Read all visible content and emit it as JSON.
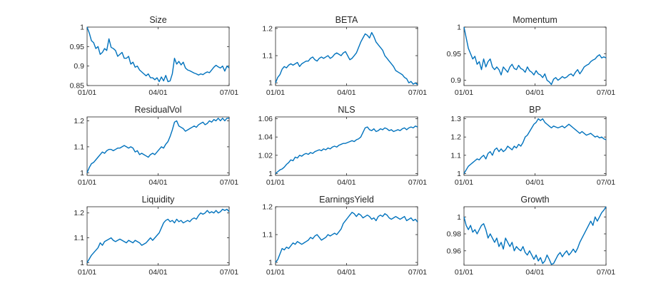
{
  "chart_data": [
    {
      "type": "line",
      "title": "Size",
      "x_ticks": [
        "01/01",
        "04/01",
        "07/01"
      ],
      "y_ticks": [
        0.85,
        0.9,
        0.95,
        1
      ],
      "ylim": [
        0.85,
        1
      ],
      "color": "#0072BD",
      "series": [
        {
          "values": [
            1.0,
            0.985,
            0.965,
            0.96,
            0.945,
            0.95,
            0.93,
            0.935,
            0.945,
            0.94,
            0.97,
            0.948,
            0.945,
            0.94,
            0.925,
            0.93,
            0.935,
            0.92,
            0.92,
            0.925,
            0.905,
            0.91,
            0.897,
            0.9,
            0.89,
            0.885,
            0.88,
            0.875,
            0.88,
            0.87,
            0.87,
            0.865,
            0.87,
            0.86,
            0.872,
            0.862,
            0.876,
            0.86,
            0.862,
            0.88,
            0.92,
            0.905,
            0.912,
            0.903,
            0.91,
            0.895,
            0.89,
            0.888,
            0.885,
            0.882,
            0.88,
            0.877,
            0.88,
            0.878,
            0.882,
            0.885,
            0.883,
            0.89,
            0.897,
            0.902,
            0.898,
            0.895,
            0.9,
            0.887,
            0.9,
            0.895
          ]
        }
      ]
    },
    {
      "type": "line",
      "title": "BETA",
      "x_ticks": [
        "01/01",
        "04/01",
        "07/01"
      ],
      "y_ticks": [
        1,
        1.1,
        1.2
      ],
      "ylim": [
        0.99,
        1.205
      ],
      "color": "#0072BD",
      "series": [
        {
          "values": [
            1.0,
            1.02,
            1.03,
            1.05,
            1.06,
            1.055,
            1.065,
            1.07,
            1.065,
            1.07,
            1.075,
            1.06,
            1.07,
            1.075,
            1.08,
            1.08,
            1.09,
            1.095,
            1.085,
            1.08,
            1.09,
            1.095,
            1.09,
            1.095,
            1.1,
            1.09,
            1.095,
            1.105,
            1.11,
            1.105,
            1.1,
            1.11,
            1.115,
            1.1,
            1.085,
            1.09,
            1.1,
            1.11,
            1.13,
            1.15,
            1.165,
            1.18,
            1.175,
            1.165,
            1.185,
            1.17,
            1.15,
            1.14,
            1.13,
            1.12,
            1.1,
            1.09,
            1.08,
            1.07,
            1.06,
            1.045,
            1.04,
            1.035,
            1.03,
            1.02,
            1.015,
            1.0,
            1.005,
            0.995,
            1.0,
            0.993
          ]
        }
      ]
    },
    {
      "type": "line",
      "title": "Momentum",
      "x_ticks": [
        "01/01",
        "04/01",
        "07/01"
      ],
      "y_ticks": [
        0.9,
        0.95,
        1
      ],
      "ylim": [
        0.89,
        1.0
      ],
      "color": "#0072BD",
      "series": [
        {
          "values": [
            1.0,
            0.98,
            0.96,
            0.95,
            0.94,
            0.945,
            0.93,
            0.935,
            0.92,
            0.94,
            0.925,
            0.935,
            0.94,
            0.925,
            0.92,
            0.925,
            0.92,
            0.91,
            0.925,
            0.92,
            0.915,
            0.925,
            0.93,
            0.922,
            0.92,
            0.928,
            0.922,
            0.92,
            0.915,
            0.925,
            0.918,
            0.915,
            0.91,
            0.918,
            0.912,
            0.91,
            0.905,
            0.912,
            0.9,
            0.897,
            0.892,
            0.902,
            0.905,
            0.9,
            0.903,
            0.907,
            0.904,
            0.906,
            0.91,
            0.912,
            0.908,
            0.915,
            0.92,
            0.912,
            0.918,
            0.925,
            0.928,
            0.93,
            0.935,
            0.938,
            0.94,
            0.945,
            0.948,
            0.942,
            0.944,
            0.942
          ]
        }
      ]
    },
    {
      "type": "line",
      "title": "ResidualVol",
      "x_ticks": [
        "01/01",
        "04/01",
        "07/01"
      ],
      "y_ticks": [
        1,
        1.1,
        1.2
      ],
      "ylim": [
        0.99,
        1.215
      ],
      "color": "#0072BD",
      "series": [
        {
          "values": [
            1.0,
            1.02,
            1.035,
            1.04,
            1.05,
            1.06,
            1.07,
            1.08,
            1.075,
            1.085,
            1.09,
            1.09,
            1.085,
            1.09,
            1.095,
            1.095,
            1.1,
            1.105,
            1.1,
            1.095,
            1.1,
            1.095,
            1.08,
            1.085,
            1.07,
            1.075,
            1.07,
            1.065,
            1.06,
            1.07,
            1.075,
            1.07,
            1.08,
            1.09,
            1.1,
            1.095,
            1.11,
            1.12,
            1.14,
            1.165,
            1.195,
            1.2,
            1.18,
            1.175,
            1.17,
            1.16,
            1.165,
            1.17,
            1.175,
            1.18,
            1.175,
            1.185,
            1.19,
            1.195,
            1.185,
            1.19,
            1.2,
            1.195,
            1.205,
            1.2,
            1.21,
            1.2,
            1.21,
            1.2,
            1.21,
            1.21
          ]
        }
      ]
    },
    {
      "type": "line",
      "title": "NLS",
      "x_ticks": [
        "01/01",
        "04/01",
        "07/01"
      ],
      "y_ticks": [
        1,
        1.02,
        1.04,
        1.06
      ],
      "ylim": [
        0.998,
        1.062
      ],
      "color": "#0072BD",
      "series": [
        {
          "values": [
            1.0,
            1.002,
            1.004,
            1.005,
            1.007,
            1.01,
            1.012,
            1.015,
            1.014,
            1.018,
            1.017,
            1.02,
            1.019,
            1.021,
            1.022,
            1.021,
            1.023,
            1.022,
            1.024,
            1.025,
            1.026,
            1.025,
            1.027,
            1.026,
            1.028,
            1.027,
            1.029,
            1.03,
            1.029,
            1.031,
            1.032,
            1.033,
            1.033,
            1.034,
            1.035,
            1.036,
            1.035,
            1.037,
            1.038,
            1.04,
            1.045,
            1.05,
            1.051,
            1.048,
            1.047,
            1.049,
            1.046,
            1.047,
            1.049,
            1.048,
            1.05,
            1.049,
            1.047,
            1.048,
            1.046,
            1.047,
            1.048,
            1.047,
            1.049,
            1.05,
            1.048,
            1.05,
            1.051,
            1.05,
            1.052,
            1.051
          ]
        }
      ]
    },
    {
      "type": "line",
      "title": "BP",
      "x_ticks": [
        "01/01",
        "04/01",
        "07/01"
      ],
      "y_ticks": [
        1,
        1.1,
        1.2,
        1.3
      ],
      "ylim": [
        0.99,
        1.31
      ],
      "color": "#0072BD",
      "series": [
        {
          "values": [
            1.0,
            1.02,
            1.04,
            1.05,
            1.06,
            1.07,
            1.08,
            1.075,
            1.09,
            1.1,
            1.08,
            1.11,
            1.12,
            1.1,
            1.13,
            1.14,
            1.12,
            1.135,
            1.12,
            1.13,
            1.15,
            1.14,
            1.13,
            1.15,
            1.14,
            1.16,
            1.15,
            1.17,
            1.2,
            1.21,
            1.23,
            1.25,
            1.27,
            1.28,
            1.3,
            1.29,
            1.3,
            1.28,
            1.27,
            1.26,
            1.25,
            1.26,
            1.255,
            1.25,
            1.255,
            1.26,
            1.25,
            1.26,
            1.27,
            1.26,
            1.25,
            1.24,
            1.23,
            1.22,
            1.23,
            1.22,
            1.21,
            1.215,
            1.22,
            1.21,
            1.2,
            1.205,
            1.195,
            1.2,
            1.19,
            1.185
          ]
        }
      ]
    },
    {
      "type": "line",
      "title": "Liquidity",
      "x_ticks": [
        "01/01",
        "04/01",
        "07/01"
      ],
      "y_ticks": [
        1,
        1.1,
        1.2
      ],
      "ylim": [
        0.99,
        1.225
      ],
      "color": "#0072BD",
      "series": [
        {
          "values": [
            1.0,
            1.015,
            1.03,
            1.04,
            1.05,
            1.06,
            1.08,
            1.07,
            1.085,
            1.09,
            1.095,
            1.1,
            1.09,
            1.085,
            1.09,
            1.095,
            1.09,
            1.085,
            1.08,
            1.09,
            1.085,
            1.08,
            1.09,
            1.085,
            1.08,
            1.07,
            1.075,
            1.08,
            1.09,
            1.1,
            1.09,
            1.1,
            1.11,
            1.12,
            1.14,
            1.16,
            1.17,
            1.175,
            1.165,
            1.17,
            1.16,
            1.175,
            1.165,
            1.17,
            1.16,
            1.165,
            1.17,
            1.165,
            1.175,
            1.18,
            1.175,
            1.19,
            1.2,
            1.195,
            1.2,
            1.21,
            1.2,
            1.205,
            1.2,
            1.21,
            1.2,
            1.205,
            1.215,
            1.21,
            1.215,
            1.205
          ]
        }
      ]
    },
    {
      "type": "line",
      "title": "EarningsYield",
      "x_ticks": [
        "01/01",
        "04/01",
        "07/01"
      ],
      "y_ticks": [
        1,
        1.1,
        1.2
      ],
      "ylim": [
        0.99,
        1.2
      ],
      "color": "#0072BD",
      "series": [
        {
          "values": [
            1.0,
            1.01,
            1.03,
            1.05,
            1.045,
            1.055,
            1.05,
            1.06,
            1.07,
            1.065,
            1.075,
            1.07,
            1.065,
            1.07,
            1.075,
            1.08,
            1.09,
            1.085,
            1.095,
            1.1,
            1.09,
            1.08,
            1.085,
            1.09,
            1.1,
            1.095,
            1.1,
            1.105,
            1.1,
            1.11,
            1.12,
            1.14,
            1.15,
            1.16,
            1.17,
            1.18,
            1.175,
            1.165,
            1.175,
            1.17,
            1.16,
            1.165,
            1.17,
            1.165,
            1.155,
            1.16,
            1.15,
            1.165,
            1.17,
            1.165,
            1.175,
            1.17,
            1.16,
            1.155,
            1.16,
            1.165,
            1.16,
            1.155,
            1.16,
            1.165,
            1.15,
            1.155,
            1.16,
            1.15,
            1.155,
            1.145
          ]
        }
      ]
    },
    {
      "type": "line",
      "title": "Growth",
      "x_ticks": [
        "01/01",
        "04/01",
        "07/01"
      ],
      "y_ticks": [
        0.96,
        0.98,
        1
      ],
      "ylim": [
        0.943,
        1.012
      ],
      "color": "#0072BD",
      "series": [
        {
          "values": [
            1.0,
            0.99,
            0.985,
            0.99,
            0.982,
            0.985,
            0.98,
            0.985,
            0.99,
            0.992,
            0.985,
            0.975,
            0.98,
            0.975,
            0.97,
            0.975,
            0.965,
            0.97,
            0.962,
            0.975,
            0.97,
            0.965,
            0.97,
            0.96,
            0.965,
            0.962,
            0.96,
            0.965,
            0.958,
            0.955,
            0.96,
            0.955,
            0.95,
            0.955,
            0.948,
            0.952,
            0.945,
            0.948,
            0.955,
            0.95,
            0.944,
            0.945,
            0.95,
            0.955,
            0.958,
            0.953,
            0.957,
            0.96,
            0.955,
            0.958,
            0.962,
            0.958,
            0.963,
            0.97,
            0.975,
            0.98,
            0.985,
            0.99,
            0.995,
            0.99,
            1.0,
            0.995,
            1.0,
            1.005,
            1.008,
            1.012
          ]
        }
      ]
    }
  ]
}
